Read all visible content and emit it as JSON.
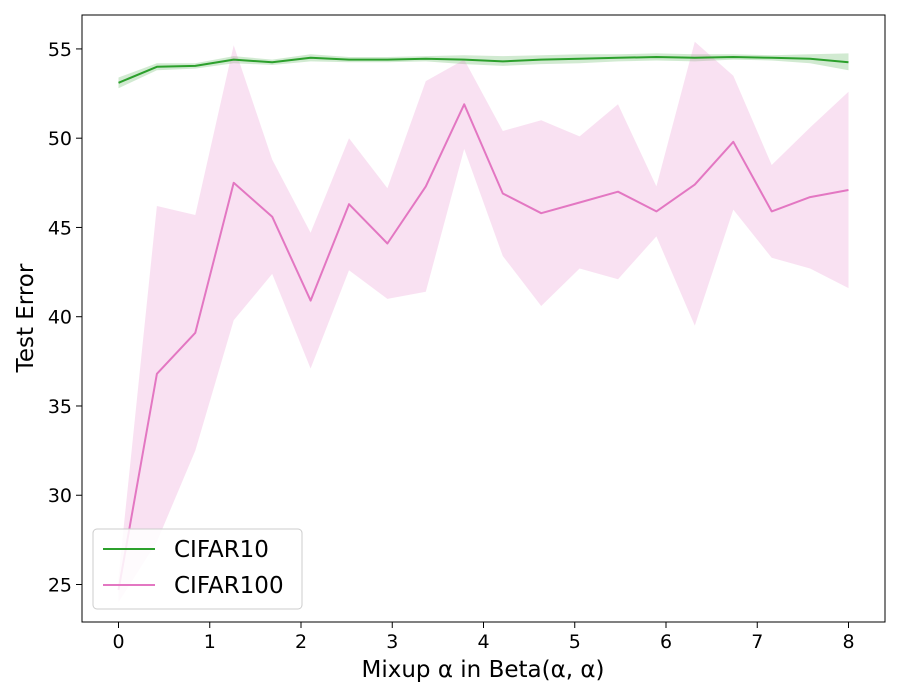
{
  "chart_data": {
    "type": "line",
    "xlabel": "Mixup α in Beta(α, α)",
    "ylabel": "Test Error",
    "xlim": [
      -0.4,
      8.4
    ],
    "ylim": [
      22.9,
      56.9
    ],
    "xticks": [
      0,
      1,
      2,
      3,
      4,
      5,
      6,
      7,
      8
    ],
    "yticks": [
      25,
      30,
      35,
      40,
      45,
      50,
      55
    ],
    "legend_position": "lower-left",
    "x": [
      0,
      0.421,
      0.842,
      1.263,
      1.684,
      2.105,
      2.526,
      2.947,
      3.368,
      3.789,
      4.211,
      4.632,
      5.053,
      5.474,
      5.895,
      6.316,
      6.737,
      7.158,
      7.579,
      8.0
    ],
    "series": [
      {
        "name": "CIFAR10",
        "color": "#2ca02c",
        "values": [
          53.1,
          54.0,
          54.05,
          54.4,
          54.25,
          54.5,
          54.4,
          54.4,
          54.45,
          54.4,
          54.3,
          54.4,
          54.45,
          54.5,
          54.55,
          54.5,
          54.55,
          54.5,
          54.45,
          54.25
        ],
        "lower": [
          52.8,
          53.8,
          53.9,
          54.2,
          54.1,
          54.3,
          54.25,
          54.25,
          54.3,
          54.15,
          54.05,
          54.15,
          54.2,
          54.3,
          54.35,
          54.3,
          54.4,
          54.35,
          54.2,
          53.8
        ],
        "upper": [
          53.4,
          54.2,
          54.2,
          54.6,
          54.4,
          54.7,
          54.55,
          54.55,
          54.6,
          54.65,
          54.6,
          54.65,
          54.7,
          54.7,
          54.75,
          54.7,
          54.7,
          54.65,
          54.7,
          54.75
        ]
      },
      {
        "name": "CIFAR100",
        "color": "#e377c2",
        "values": [
          24.7,
          36.8,
          39.1,
          47.5,
          45.6,
          40.9,
          46.3,
          44.1,
          47.3,
          51.9,
          46.9,
          45.8,
          46.4,
          47.0,
          45.9,
          47.4,
          49.8,
          45.9,
          46.7,
          47.1
        ],
        "lower": [
          24.0,
          27.4,
          32.5,
          39.8,
          42.4,
          37.1,
          42.6,
          41.0,
          41.4,
          49.4,
          43.4,
          40.6,
          42.7,
          42.1,
          44.5,
          39.5,
          46.0,
          43.3,
          42.7,
          41.6
        ],
        "upper": [
          25.4,
          46.2,
          45.7,
          55.2,
          48.8,
          44.7,
          50.0,
          47.2,
          53.2,
          54.4,
          50.4,
          51.0,
          50.1,
          51.9,
          47.3,
          55.4,
          53.5,
          48.5,
          50.6,
          52.6
        ]
      }
    ]
  }
}
